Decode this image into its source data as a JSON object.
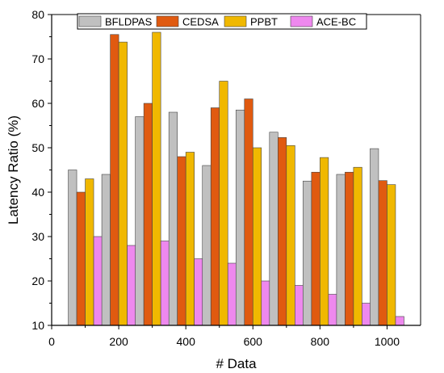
{
  "chart_data": {
    "type": "bar",
    "title": "",
    "xlabel": "# Data",
    "ylabel": "Latency Ratio (%)",
    "xlim": [
      0,
      1100
    ],
    "ylim": [
      10,
      80
    ],
    "x_ticks": [
      0,
      200,
      400,
      600,
      800,
      1000
    ],
    "y_ticks": [
      10,
      20,
      30,
      40,
      50,
      60,
      70,
      80
    ],
    "categories": [
      100,
      200,
      300,
      400,
      500,
      600,
      700,
      800,
      900,
      1000
    ],
    "series": [
      {
        "name": "BFLDPAS",
        "color": "#c0c0c0",
        "values": [
          45,
          44,
          57,
          58,
          46,
          58.5,
          53.5,
          42.5,
          44,
          49.8
        ]
      },
      {
        "name": "CEDSA",
        "color": "#e05a10",
        "values": [
          40,
          75.5,
          60,
          48,
          59,
          61,
          52.3,
          44.5,
          44.5,
          42.6
        ]
      },
      {
        "name": "PPBT",
        "color": "#f0b800",
        "values": [
          43,
          73.8,
          76,
          49,
          65,
          50,
          50.5,
          47.8,
          45.6,
          41.7
        ]
      },
      {
        "name": "ACE-BC",
        "color": "#ee88ee",
        "values": [
          30,
          28,
          29,
          25,
          24,
          20,
          19,
          17,
          15,
          12
        ]
      }
    ],
    "legend_position": "top",
    "grid": false
  }
}
